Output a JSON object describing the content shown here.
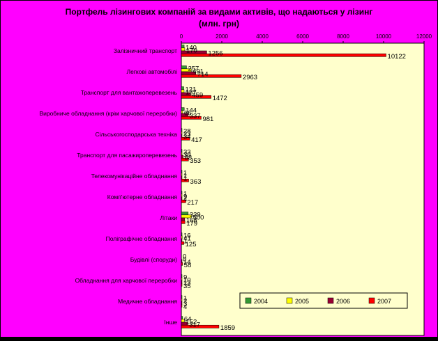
{
  "chart_data": {
    "type": "bar",
    "orientation": "horizontal",
    "title_line1": "Портфель лізингових компаній за видами активів, що надаються у лізинг",
    "title_line2": "(млн. грн)",
    "xlim": [
      0,
      12000
    ],
    "x_ticks": [
      "0",
      "2000",
      "4000",
      "6000",
      "8000",
      "10000",
      "12000"
    ],
    "categories": [
      "Залізничний транспорт",
      "Легкові автомобілі",
      "Транспорт для вантажоперевезень",
      "Виробниче обладнання (крім харчової переробки)",
      "Сільськогосподарська техніка",
      "Транспорт для пасажироперевезень",
      "Телекомунікаційне обладнання",
      "Комп'ютерне обладнання",
      "Літаки",
      "Поліграфічне обладнання",
      "Будівлі (споруди)",
      "Обладнання для харчової переробки",
      "Медичне обладнання",
      "Інше"
    ],
    "series": [
      {
        "name": "2004",
        "color": "#339933",
        "values": [
          140,
          257,
          121,
          144,
          28,
          33,
          1,
          1,
          339,
          16,
          0,
          9,
          1,
          64
        ]
      },
      {
        "name": "2005",
        "color": "#ffff00",
        "values": [
          170,
          491,
          137,
          66,
          23,
          30,
          1,
          9,
          500,
          41,
          0,
          10,
          2,
          152
        ]
      },
      {
        "name": "2006",
        "color": "#990033",
        "values": [
          1256,
          714,
          459,
          337,
          34,
          88,
          1,
          4,
          168,
          1,
          14,
          13,
          3,
          317
        ]
      },
      {
        "name": "2007",
        "color": "#ff0000",
        "values": [
          10122,
          2963,
          1472,
          981,
          417,
          353,
          363,
          217,
          179,
          125,
          58,
          35,
          4,
          1859
        ]
      }
    ],
    "colors": {
      "outer_background": "#ff00ff",
      "plot_background": "#ffffcc",
      "border": "#000000"
    },
    "legend_position": "bottom-right",
    "grid": false
  }
}
